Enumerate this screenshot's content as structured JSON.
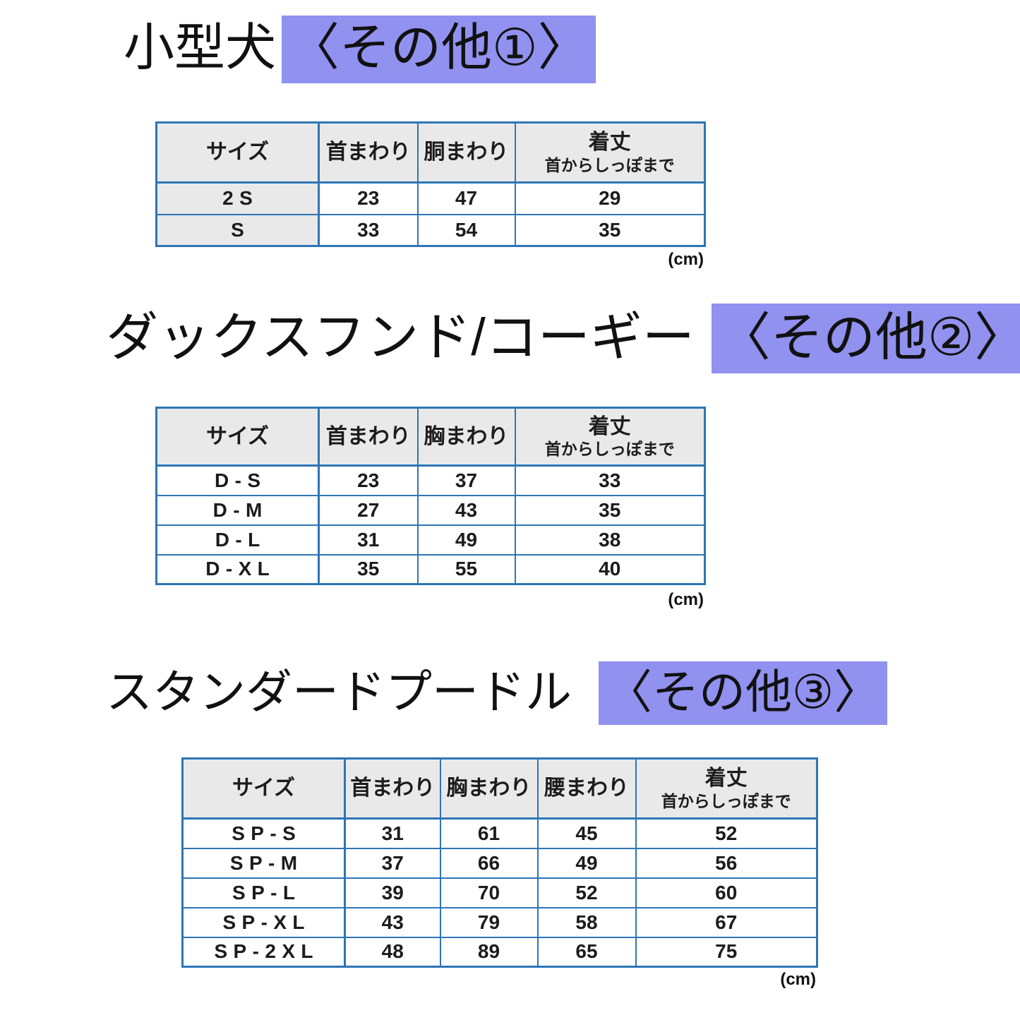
{
  "colors": {
    "highlight": "#9191f0",
    "table_border": "#2e75b6",
    "header_bg": "#e9e9e9",
    "text": "#1c1c1c"
  },
  "sections": [
    {
      "title": "小型犬",
      "highlight": "〈その他①〉",
      "unit": "(cm)",
      "table": {
        "columns": [
          {
            "label": "サイズ"
          },
          {
            "label": "首まわり"
          },
          {
            "label": "胴まわり"
          },
          {
            "label": "着丈",
            "sub": "首からしっぽまで"
          }
        ],
        "rows": [
          [
            "2S",
            "23",
            "47",
            "29"
          ],
          [
            "S",
            "33",
            "54",
            "35"
          ]
        ]
      }
    },
    {
      "title": "ダックスフンド/コーギー",
      "highlight": "〈その他②〉",
      "unit": "(cm)",
      "table": {
        "columns": [
          {
            "label": "サイズ"
          },
          {
            "label": "首まわり"
          },
          {
            "label": "胸まわり"
          },
          {
            "label": "着丈",
            "sub": "首からしっぽまで"
          }
        ],
        "rows": [
          [
            "D-S",
            "23",
            "37",
            "33"
          ],
          [
            "D-M",
            "27",
            "43",
            "35"
          ],
          [
            "D-L",
            "31",
            "49",
            "38"
          ],
          [
            "D-XL",
            "35",
            "55",
            "40"
          ]
        ]
      }
    },
    {
      "title": "スタンダードプードル",
      "highlight": "〈その他③〉",
      "unit": "(cm)",
      "table": {
        "columns": [
          {
            "label": "サイズ"
          },
          {
            "label": "首まわり"
          },
          {
            "label": "胸まわり"
          },
          {
            "label": "腰まわり"
          },
          {
            "label": "着丈",
            "sub": "首からしっぽまで"
          }
        ],
        "rows": [
          [
            "SP-S",
            "31",
            "61",
            "45",
            "52"
          ],
          [
            "SP-M",
            "37",
            "66",
            "49",
            "56"
          ],
          [
            "SP-L",
            "39",
            "70",
            "52",
            "60"
          ],
          [
            "SP-XL",
            "43",
            "79",
            "58",
            "67"
          ],
          [
            "SP-2XL",
            "48",
            "89",
            "65",
            "75"
          ]
        ]
      }
    }
  ]
}
